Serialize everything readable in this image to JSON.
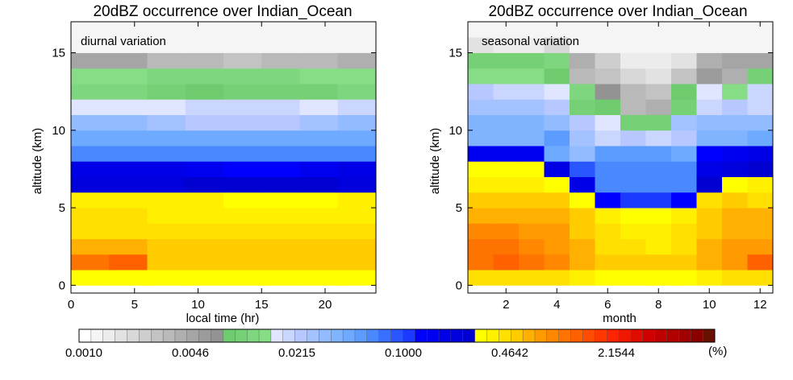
{
  "chart_data": [
    {
      "type": "heatmap",
      "title": "20dBZ occurrence over Indian_Ocean",
      "annotation": "diurnal variation",
      "xlabel": "local time (hr)",
      "ylabel": "altitude (km)",
      "xlim": [
        0,
        24
      ],
      "ylim": [
        -0.5,
        17
      ],
      "xticks": [
        0,
        5,
        10,
        15,
        20
      ],
      "yticks": [
        0,
        5,
        10,
        15
      ],
      "x_edges": [
        0,
        3,
        6,
        9,
        12,
        15,
        18,
        21,
        24
      ],
      "y_edges": [
        0,
        1,
        2,
        3,
        4,
        5,
        6,
        7,
        8,
        9,
        10,
        11,
        12,
        13,
        14,
        15,
        17
      ],
      "cell_level_index": [
        [
          33,
          33,
          33,
          33,
          33,
          33,
          33,
          33
        ],
        [
          40,
          41,
          36,
          36,
          36,
          36,
          36,
          36
        ],
        [
          37,
          37,
          36,
          36,
          36,
          36,
          36,
          36
        ],
        [
          35,
          35,
          35,
          35,
          35,
          35,
          35,
          35
        ],
        [
          35,
          35,
          34,
          34,
          34,
          34,
          34,
          34
        ],
        [
          34,
          34,
          34,
          34,
          33,
          33,
          33,
          34
        ],
        [
          31,
          31,
          31,
          32,
          32,
          32,
          32,
          31
        ],
        [
          30,
          30,
          30,
          29,
          28,
          28,
          29,
          30
        ],
        [
          24,
          24,
          24,
          24,
          24,
          24,
          24,
          24
        ],
        [
          22,
          22,
          22,
          22,
          22,
          22,
          22,
          22
        ],
        [
          20,
          20,
          19,
          18,
          18,
          18,
          19,
          20
        ],
        [
          16,
          16,
          16,
          17,
          17,
          17,
          16,
          17
        ],
        [
          14,
          14,
          13,
          12,
          13,
          13,
          13,
          14
        ],
        [
          15,
          15,
          14,
          14,
          14,
          14,
          15,
          15
        ],
        [
          9,
          9,
          7,
          7,
          6,
          7,
          7,
          8
        ],
        [
          1,
          1,
          1,
          1,
          1,
          1,
          1,
          1
        ]
      ]
    },
    {
      "type": "heatmap",
      "title": "20dBZ occurrence over Indian_Ocean",
      "annotation": "seasonal variation",
      "xlabel": "month",
      "ylabel": "altitude (km)",
      "xlim": [
        0.5,
        12.5
      ],
      "ylim": [
        -0.5,
        17
      ],
      "xticks": [
        2,
        4,
        6,
        8,
        10,
        12
      ],
      "yticks": [
        0,
        5,
        10,
        15
      ],
      "x_edges": [
        0.5,
        1.5,
        2.5,
        3.5,
        4.5,
        5.5,
        6.5,
        7.5,
        8.5,
        9.5,
        10.5,
        11.5,
        12.5
      ],
      "y_edges": [
        0,
        1,
        2,
        3,
        4,
        5,
        6,
        7,
        8,
        9,
        10,
        11,
        12,
        13,
        14,
        15,
        16,
        17
      ],
      "cell_level_index": [
        [
          35,
          35,
          35,
          35,
          34,
          33,
          33,
          33,
          33,
          34,
          35,
          35
        ],
        [
          40,
          41,
          40,
          39,
          37,
          36,
          36,
          36,
          36,
          37,
          38,
          41
        ],
        [
          40,
          40,
          39,
          38,
          37,
          35,
          35,
          34,
          35,
          37,
          38,
          38
        ],
        [
          39,
          39,
          38,
          38,
          36,
          35,
          34,
          34,
          35,
          36,
          37,
          37
        ],
        [
          37,
          37,
          37,
          37,
          36,
          34,
          33,
          33,
          34,
          36,
          37,
          37
        ],
        [
          36,
          36,
          36,
          36,
          33,
          28,
          27,
          27,
          28,
          35,
          36,
          35
        ],
        [
          34,
          34,
          34,
          33,
          30,
          24,
          24,
          24,
          24,
          32,
          33,
          34
        ],
        [
          33,
          33,
          33,
          30,
          26,
          24,
          24,
          24,
          24,
          30,
          31,
          32
        ],
        [
          29,
          29,
          29,
          22,
          20,
          23,
          23,
          23,
          22,
          28,
          29,
          30
        ],
        [
          21,
          21,
          21,
          23,
          19,
          17,
          18,
          17,
          18,
          21,
          21,
          22
        ],
        [
          21,
          21,
          21,
          20,
          18,
          16,
          13,
          13,
          19,
          20,
          20,
          20
        ],
        [
          19,
          19,
          19,
          18,
          13,
          12,
          7,
          8,
          13,
          17,
          18,
          17
        ],
        [
          18,
          17,
          17,
          16,
          14,
          11,
          7,
          6,
          12,
          16,
          15,
          17
        ],
        [
          15,
          15,
          15,
          12,
          7,
          6,
          4,
          3,
          6,
          10,
          8,
          13
        ],
        [
          13,
          13,
          13,
          14,
          8,
          5,
          2,
          2,
          3,
          8,
          9,
          9
        ],
        [
          3,
          2,
          2,
          4,
          1,
          1,
          1,
          1,
          1,
          1,
          1,
          1
        ],
        [
          1,
          1,
          1,
          1,
          1,
          1,
          1,
          1,
          1,
          1,
          1,
          1
        ]
      ]
    }
  ],
  "colorbar": {
    "tick_labels": [
      "0.0010",
      "0.0046",
      "0.0215",
      "0.1000",
      "0.4642",
      "2.1544"
    ],
    "unit": "(%)",
    "colors": [
      "#ffffff",
      "#f5f5f5",
      "#ececec",
      "#e2e2e2",
      "#d8d8d8",
      "#cecece",
      "#c3c3c3",
      "#b9b9b9",
      "#afafaf",
      "#a5a5a5",
      "#9b9b9b",
      "#939393",
      "#6ecb6e",
      "#76d176",
      "#7ed77e",
      "#86dd86",
      "#e0e6ff",
      "#cbd6ff",
      "#b6c8ff",
      "#a4c2ff",
      "#92bcff",
      "#80b4ff",
      "#6eaaff",
      "#5c9cff",
      "#4a88ff",
      "#3a70ff",
      "#2a56ff",
      "#1a3aff",
      "#0000ff",
      "#0000f0",
      "#0000e6",
      "#0000dc",
      "#0000d0",
      "#ffff00",
      "#fff000",
      "#ffe000",
      "#ffcc00",
      "#ffb000",
      "#ff9a00",
      "#ff8800",
      "#ff7400",
      "#ff6000",
      "#ff4c00",
      "#ff3800",
      "#ff2400",
      "#f01600",
      "#e00c00",
      "#d00000",
      "#c00000",
      "#b00000",
      "#a00000",
      "#8a0000",
      "#6a1000"
    ]
  }
}
